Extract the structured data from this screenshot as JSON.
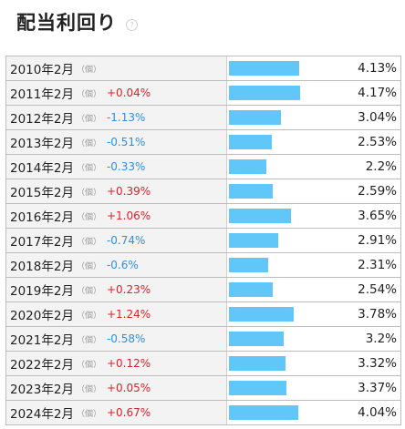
{
  "header": {
    "title": "配当利回り",
    "help_icon": "help-circle-icon"
  },
  "colors": {
    "bar": "#61c6f8",
    "positive": "#d9232d",
    "negative": "#2e8fe0"
  },
  "unit_label": "（個）",
  "bar_max": 4.17,
  "rows": [
    {
      "year": "2010年2月",
      "change": "",
      "direction": "",
      "value": "4.13%",
      "yield": 4.13
    },
    {
      "year": "2011年2月",
      "change": "+0.04%",
      "direction": "pos",
      "value": "4.17%",
      "yield": 4.17
    },
    {
      "year": "2012年2月",
      "change": "-1.13%",
      "direction": "neg",
      "value": "3.04%",
      "yield": 3.04
    },
    {
      "year": "2013年2月",
      "change": "-0.51%",
      "direction": "neg",
      "value": "2.53%",
      "yield": 2.53
    },
    {
      "year": "2014年2月",
      "change": "-0.33%",
      "direction": "neg",
      "value": "2.2%",
      "yield": 2.2
    },
    {
      "year": "2015年2月",
      "change": "+0.39%",
      "direction": "pos",
      "value": "2.59%",
      "yield": 2.59
    },
    {
      "year": "2016年2月",
      "change": "+1.06%",
      "direction": "pos",
      "value": "3.65%",
      "yield": 3.65
    },
    {
      "year": "2017年2月",
      "change": "-0.74%",
      "direction": "neg",
      "value": "2.91%",
      "yield": 2.91
    },
    {
      "year": "2018年2月",
      "change": "-0.6%",
      "direction": "neg",
      "value": "2.31%",
      "yield": 2.31
    },
    {
      "year": "2019年2月",
      "change": "+0.23%",
      "direction": "pos",
      "value": "2.54%",
      "yield": 2.54
    },
    {
      "year": "2020年2月",
      "change": "+1.24%",
      "direction": "pos",
      "value": "3.78%",
      "yield": 3.78
    },
    {
      "year": "2021年2月",
      "change": "-0.58%",
      "direction": "neg",
      "value": "3.2%",
      "yield": 3.2
    },
    {
      "year": "2022年2月",
      "change": "+0.12%",
      "direction": "pos",
      "value": "3.32%",
      "yield": 3.32
    },
    {
      "year": "2023年2月",
      "change": "+0.05%",
      "direction": "pos",
      "value": "3.37%",
      "yield": 3.37
    },
    {
      "year": "2024年2月",
      "change": "+0.67%",
      "direction": "pos",
      "value": "4.04%",
      "yield": 4.04
    }
  ]
}
